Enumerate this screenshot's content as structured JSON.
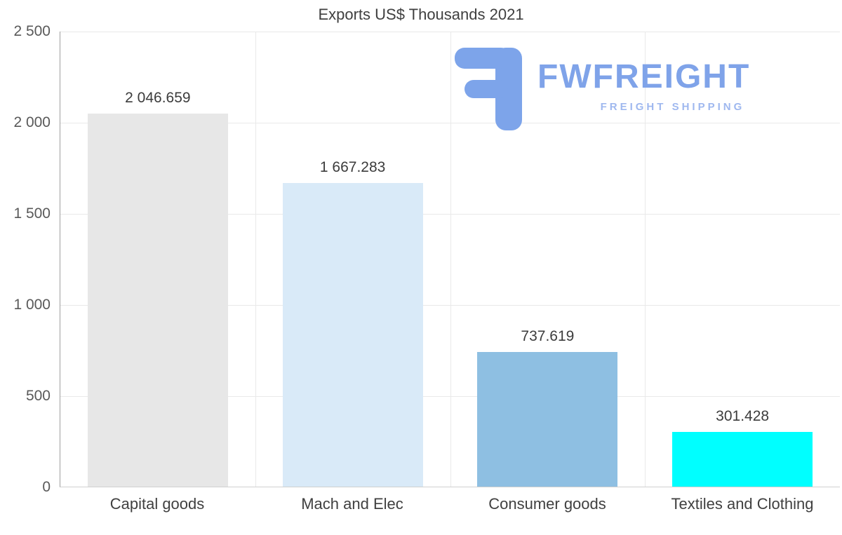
{
  "logo": {
    "name": "FWFREIGHT",
    "tagline": "FREIGHT SHIPPING",
    "glyph_color": "#7da4ea",
    "name_color": "#7fa3e9",
    "tagline_color": "#9fb8ef"
  },
  "chart_data": {
    "type": "bar",
    "title": "Exports US$ Thousands 2021",
    "categories": [
      "Capital goods",
      "Mach and Elec",
      "Consumer goods",
      "Textiles and Clothing"
    ],
    "values": [
      2046.659,
      1667.283,
      737.619,
      301.428
    ],
    "value_labels": [
      "2 046.659",
      "1 667.283",
      "737.619",
      "301.428"
    ],
    "colors": [
      "#e7e7e7",
      "#d9eaf8",
      "#8ebfe2",
      "#00ffff"
    ],
    "ylim": [
      0,
      2500
    ],
    "yticks": [
      2500,
      2000,
      1500,
      1000,
      500,
      0
    ],
    "ytick_labels": [
      "2 500",
      "2 000",
      "1 500",
      "1 000",
      "500",
      "0"
    ],
    "xlabel": "",
    "ylabel": "",
    "grid": true,
    "legend": false
  }
}
